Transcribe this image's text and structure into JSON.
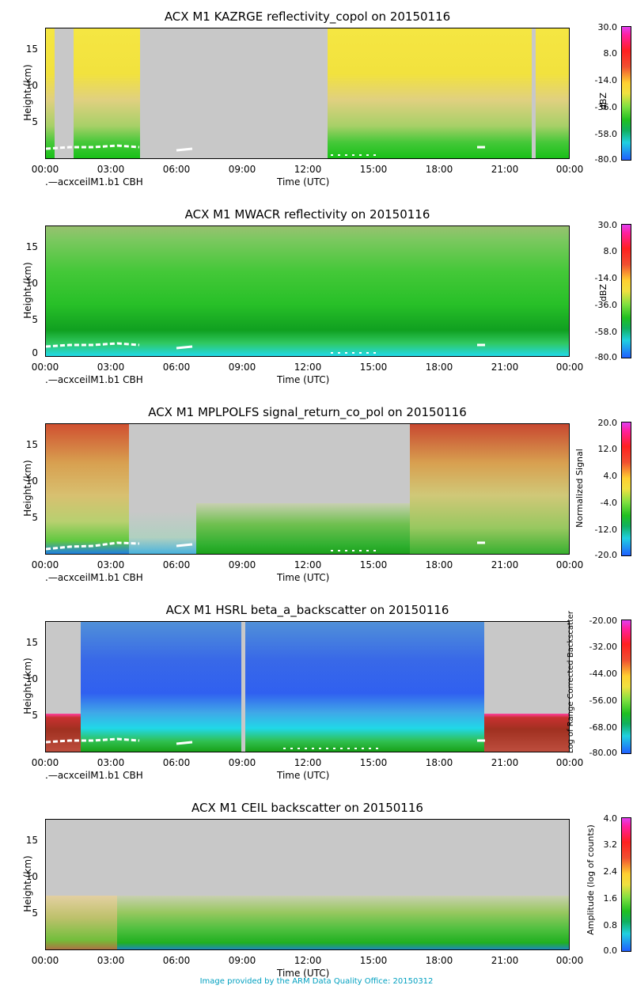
{
  "chart_data": [
    {
      "type": "heatmap",
      "title": "ACX M1 KAZRGE reflectivity_copol on 20150116",
      "xlabel": "Time (UTC)",
      "ylabel": "Height (km)",
      "x_ticks": [
        "00:00",
        "03:00",
        "06:00",
        "09:00",
        "12:00",
        "15:00",
        "18:00",
        "21:00",
        "00:00"
      ],
      "y_ticks": [
        "5",
        "10",
        "15"
      ],
      "ylim": [
        0,
        18
      ],
      "overlay_label": ".—acxceilM1.b1 CBH",
      "colorbar": {
        "unit": "dBZ",
        "ticks": [
          "30.0",
          "8.0",
          "-14.0",
          "-36.0",
          "-58.0",
          "-80.0"
        ],
        "range": [
          -80,
          30
        ]
      },
      "segments": [
        {
          "start_h": 0.0,
          "end_h": 0.4,
          "content": "yellow-to-green echo"
        },
        {
          "start_h": 0.4,
          "end_h": 1.3,
          "content": "missing"
        },
        {
          "start_h": 1.3,
          "end_h": 4.3,
          "content": "yellow-to-green echo"
        },
        {
          "start_h": 4.3,
          "end_h": 12.9,
          "content": "missing"
        },
        {
          "start_h": 12.9,
          "end_h": 22.2,
          "content": "yellow-to-green echo"
        },
        {
          "start_h": 22.2,
          "end_h": 22.4,
          "content": "missing"
        },
        {
          "start_h": 22.4,
          "end_h": 24.0,
          "content": "yellow-to-green echo"
        }
      ]
    },
    {
      "type": "heatmap",
      "title": "ACX M1 MWACR reflectivity on 20150116",
      "xlabel": "Time (UTC)",
      "ylabel": "Height (km)",
      "x_ticks": [
        "00:00",
        "03:00",
        "06:00",
        "09:00",
        "12:00",
        "15:00",
        "18:00",
        "21:00",
        "00:00"
      ],
      "y_ticks": [
        "0",
        "5",
        "10",
        "15"
      ],
      "ylim": [
        0,
        18
      ],
      "overlay_label": ".—acxceilM1.b1 CBH",
      "colorbar": {
        "unit": "dBZ",
        "ticks": [
          "30.0",
          "8.0",
          "-14.0",
          "-36.0",
          "-58.0",
          "-80.0"
        ],
        "range": [
          -80,
          30
        ]
      },
      "segments": [
        {
          "start_h": 0.0,
          "end_h": 24.0,
          "content": "green noise"
        }
      ]
    },
    {
      "type": "heatmap",
      "title": "ACX M1 MPLPOLFS signal_return_co_pol on 20150116",
      "xlabel": "Time (UTC)",
      "ylabel": "Height (km)",
      "x_ticks": [
        "00:00",
        "03:00",
        "06:00",
        "09:00",
        "12:00",
        "15:00",
        "18:00",
        "21:00",
        "00:00"
      ],
      "y_ticks": [
        "5",
        "10",
        "15"
      ],
      "ylim": [
        0,
        18
      ],
      "overlay_label": ".—acxceilM1.b1 CBH",
      "colorbar": {
        "unit": "Normalized Signal",
        "ticks": [
          "20.0",
          "12.0",
          "4.0",
          "-4.0",
          "-12.0",
          "-20.0"
        ],
        "range": [
          -20,
          20
        ]
      },
      "segments": [
        {
          "start_h": 0.0,
          "end_h": 3.8,
          "content": "red/yellow noise"
        },
        {
          "start_h": 3.8,
          "end_h": 7.0,
          "content": "mostly missing"
        },
        {
          "start_h": 7.0,
          "end_h": 16.7,
          "content": "green low signal"
        },
        {
          "start_h": 16.7,
          "end_h": 24.0,
          "content": "red/yellow noise"
        }
      ]
    },
    {
      "type": "heatmap",
      "title": "ACX M1 HSRL beta_a_backscatter on 20150116",
      "xlabel": "Time (UTC)",
      "ylabel": "Height (km)",
      "x_ticks": [
        "00:00",
        "03:00",
        "06:00",
        "09:00",
        "12:00",
        "15:00",
        "18:00",
        "21:00",
        "00:00"
      ],
      "y_ticks": [
        "5",
        "10",
        "15"
      ],
      "ylim": [
        0,
        18
      ],
      "overlay_label": ".—acxceilM1.b1 CBH",
      "colorbar": {
        "unit": "Log of Range Corrected Backscatter",
        "ticks": [
          "-20.00",
          "-32.00",
          "-44.00",
          "-56.00",
          "-68.00",
          "-80.00"
        ],
        "range": [
          -80,
          -20
        ]
      },
      "segments": [
        {
          "start_h": 0.0,
          "end_h": 1.6,
          "content": "dark red block"
        },
        {
          "start_h": 1.6,
          "end_h": 8.9,
          "content": "blue noise"
        },
        {
          "start_h": 8.9,
          "end_h": 9.1,
          "content": "missing"
        },
        {
          "start_h": 9.1,
          "end_h": 20.2,
          "content": "blue noise"
        },
        {
          "start_h": 20.2,
          "end_h": 24.0,
          "content": "dark red block"
        }
      ]
    },
    {
      "type": "heatmap",
      "title": "ACX M1 CEIL backscatter on 20150116",
      "xlabel": "Time (UTC)",
      "ylabel": "Height (km)",
      "x_ticks": [
        "00:00",
        "03:00",
        "06:00",
        "09:00",
        "12:00",
        "15:00",
        "18:00",
        "21:00",
        "00:00"
      ],
      "y_ticks": [
        "5",
        "10",
        "15"
      ],
      "ylim": [
        0,
        18
      ],
      "colorbar": {
        "unit": "Amplitude (log of counts)",
        "ticks": [
          "4.0",
          "3.2",
          "2.4",
          "1.6",
          "0.8",
          "0.0"
        ],
        "range": [
          0,
          4
        ]
      },
      "segments": [
        {
          "start_h": 0.0,
          "end_h": 24.0,
          "content": "green noise below 7.5 km"
        }
      ]
    }
  ],
  "footer": "Image provided by the ARM Data Quality Office: 20150312",
  "colors": {
    "missing": "#c8c8c8",
    "yellow": "#f5e642",
    "green": "#22c41e",
    "darkred": "#a03020",
    "blue": "#3060f0",
    "cyan": "#20d8e8",
    "footer": "#00a0c0"
  }
}
